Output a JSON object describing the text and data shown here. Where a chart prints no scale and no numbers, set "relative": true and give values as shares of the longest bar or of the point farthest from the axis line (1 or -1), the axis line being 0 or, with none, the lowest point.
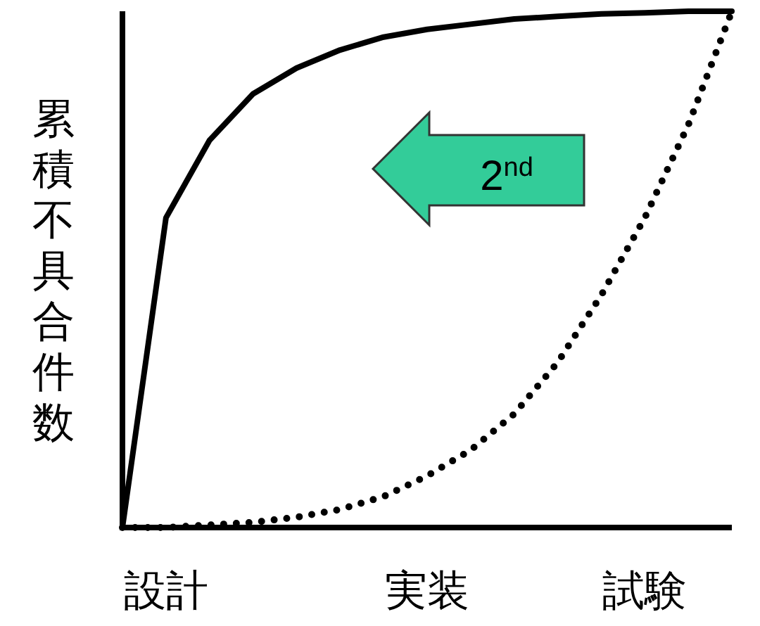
{
  "chart_data": {
    "type": "line",
    "relative": true,
    "ylabel": "累積不具合件数",
    "categories": [
      null,
      "設計",
      null,
      null,
      null,
      null,
      null,
      "実装",
      null,
      null,
      null,
      null,
      "試験",
      null,
      null
    ],
    "series": [
      {
        "color": "#000000",
        "line_style": "solid",
        "values": [
          0,
          0.6,
          0.75,
          0.84,
          0.89,
          0.925,
          0.95,
          0.965,
          0.975,
          0.985,
          0.99,
          0.995,
          0.997,
          1,
          1
        ]
      },
      {
        "color": "#000000",
        "line_style": "dotted",
        "values": [
          0,
          0,
          0.005,
          0.01,
          0.02,
          0.035,
          0.06,
          0.1,
          0.15,
          0.22,
          0.32,
          0.45,
          0.6,
          0.78,
          1
        ]
      }
    ],
    "annotations": [
      "2$^{nd}$"
    ],
    "grid": false
  }
}
